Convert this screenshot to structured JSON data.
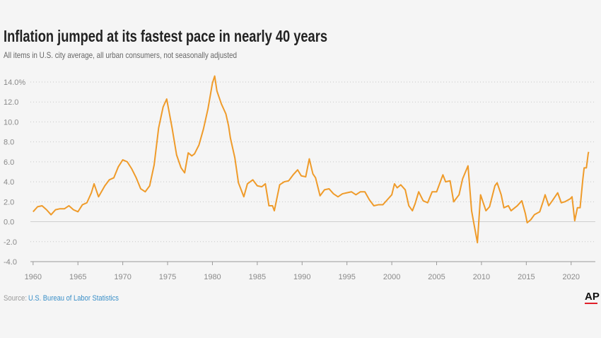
{
  "chart_data": {
    "type": "line",
    "title": "Inflation jumped at its fastest pace in nearly 40 years",
    "subtitle": "All items in U.S. city average, all urban consumers, not seasonally adjusted",
    "source_label": "Source:",
    "source": "U.S. Bureau of Labor Statistics",
    "logo": "AP",
    "color": "#ef9b2a",
    "grid": true,
    "xlim": [
      1959.7,
      2022.7
    ],
    "ylim": [
      -4,
      14.8
    ],
    "xticks": [
      1960,
      1965,
      1970,
      1975,
      1980,
      1985,
      1990,
      1995,
      2000,
      2005,
      2010,
      2015,
      2020
    ],
    "yticks": [
      {
        "value": -4,
        "label": "-4.0"
      },
      {
        "value": -2,
        "label": "-2.0"
      },
      {
        "value": 0,
        "label": "0.0"
      },
      {
        "value": 2,
        "label": "2.0"
      },
      {
        "value": 4,
        "label": "4.0"
      },
      {
        "value": 6,
        "label": "6.0"
      },
      {
        "value": 8,
        "label": "8.0"
      },
      {
        "value": 10,
        "label": "10.0"
      },
      {
        "value": 12,
        "label": "12.0"
      },
      {
        "value": 14,
        "label": "14.0%"
      }
    ],
    "x": [
      1960.0,
      1960.5,
      1961.0,
      1961.5,
      1962.0,
      1962.5,
      1963.0,
      1963.5,
      1964.0,
      1964.5,
      1965.0,
      1965.5,
      1966.0,
      1966.5,
      1966.8,
      1967.3,
      1968.0,
      1968.5,
      1969.0,
      1969.5,
      1970.0,
      1970.5,
      1971.0,
      1971.5,
      1972.0,
      1972.5,
      1973.0,
      1973.5,
      1974.0,
      1974.5,
      1974.9,
      1975.5,
      1976.0,
      1976.5,
      1976.9,
      1977.3,
      1977.7,
      1978.0,
      1978.5,
      1979.0,
      1979.5,
      1980.0,
      1980.25,
      1980.5,
      1981.0,
      1981.5,
      1981.8,
      1982.0,
      1982.5,
      1982.9,
      1983.5,
      1983.9,
      1984.5,
      1985.0,
      1985.5,
      1985.9,
      1986.3,
      1986.7,
      1986.9,
      1987.5,
      1988.0,
      1988.5,
      1989.0,
      1989.5,
      1989.9,
      1990.4,
      1990.8,
      1991.2,
      1991.5,
      1992.0,
      1992.5,
      1993.0,
      1993.5,
      1994.0,
      1994.5,
      1995.0,
      1995.5,
      1996.0,
      1996.5,
      1997.0,
      1997.5,
      1998.0,
      1998.5,
      1999.0,
      1999.5,
      2000.0,
      2000.3,
      2000.6,
      2001.0,
      2001.5,
      2001.9,
      2002.3,
      2002.6,
      2003.0,
      2003.5,
      2004.0,
      2004.5,
      2005.0,
      2005.7,
      2006.0,
      2006.5,
      2006.9,
      2007.5,
      2007.9,
      2008.5,
      2008.9,
      2009.2,
      2009.55,
      2009.9,
      2010.5,
      2010.9,
      2011.5,
      2011.75,
      2012.2,
      2012.5,
      2013.0,
      2013.3,
      2014.0,
      2014.5,
      2014.9,
      2015.1,
      2015.5,
      2015.9,
      2016.5,
      2016.9,
      2017.1,
      2017.5,
      2017.9,
      2018.5,
      2018.9,
      2019.3,
      2019.9,
      2020.1,
      2020.4,
      2020.7,
      2021.0,
      2021.3,
      2021.45,
      2021.7,
      2021.9,
      2021.95
    ],
    "values": [
      1.0,
      1.5,
      1.6,
      1.2,
      0.7,
      1.2,
      1.3,
      1.3,
      1.6,
      1.2,
      1.0,
      1.7,
      1.9,
      2.9,
      3.8,
      2.5,
      3.6,
      4.2,
      4.4,
      5.5,
      6.2,
      6.0,
      5.3,
      4.4,
      3.3,
      3.0,
      3.6,
      5.7,
      9.4,
      11.5,
      12.3,
      9.4,
      6.7,
      5.4,
      4.9,
      6.9,
      6.6,
      6.8,
      7.7,
      9.3,
      11.3,
      13.9,
      14.6,
      13.1,
      11.8,
      10.8,
      9.6,
      8.4,
      6.4,
      3.9,
      2.5,
      3.8,
      4.2,
      3.6,
      3.5,
      3.8,
      1.6,
      1.6,
      1.1,
      3.7,
      4.0,
      4.1,
      4.7,
      5.2,
      4.6,
      4.5,
      6.3,
      4.8,
      4.4,
      2.6,
      3.2,
      3.3,
      2.8,
      2.5,
      2.8,
      2.9,
      3.0,
      2.7,
      3.0,
      3.0,
      2.2,
      1.6,
      1.7,
      1.7,
      2.2,
      2.7,
      3.8,
      3.4,
      3.7,
      3.2,
      1.6,
      1.1,
      1.8,
      3.0,
      2.1,
      1.9,
      3.0,
      3.0,
      4.7,
      4.0,
      4.1,
      2.0,
      2.7,
      4.3,
      5.6,
      1.1,
      -0.4,
      -2.1,
      2.7,
      1.1,
      1.5,
      3.6,
      3.9,
      2.7,
      1.4,
      1.6,
      1.1,
      1.6,
      2.1,
      0.8,
      -0.1,
      0.2,
      0.7,
      1.0,
      2.1,
      2.7,
      1.6,
      2.1,
      2.9,
      1.9,
      2.0,
      2.3,
      2.5,
      0.1,
      1.4,
      1.4,
      4.2,
      5.4,
      5.4,
      6.8,
      7.0
    ]
  }
}
